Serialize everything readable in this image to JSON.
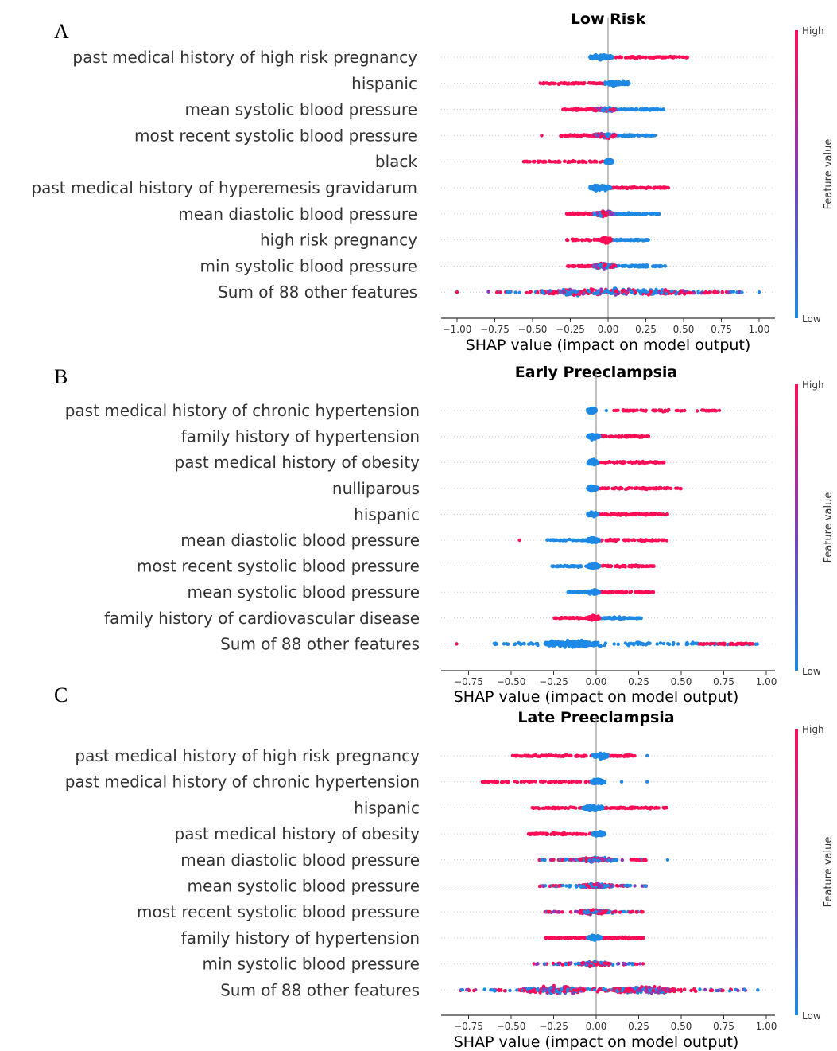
{
  "chart_data": [
    {
      "panel_letter": "A",
      "type": "scatter",
      "subtype": "shap-beeswarm",
      "title": "Low Risk",
      "xlabel": "SHAP value (impact on model output)",
      "xticks": [
        "−1.00",
        "−0.75",
        "−0.50",
        "−0.25",
        "0.00",
        "0.25",
        "0.50",
        "0.75",
        "1.00"
      ],
      "xlim": [
        -1.05,
        1.05
      ],
      "colorbar": {
        "label": "Feature value",
        "high": "High",
        "low": "Low"
      },
      "features": [
        {
          "name": "past medical history of high risk pregnancy",
          "range": [
            -0.12,
            0.53
          ],
          "core": [
            -0.12,
            0.03
          ],
          "core_color": "blue",
          "side": [
            0.03,
            0.53
          ],
          "side_color": "red",
          "outliers": []
        },
        {
          "name": "hispanic",
          "range": [
            -0.45,
            0.14
          ],
          "core": [
            -0.02,
            0.14
          ],
          "core_color": "blue",
          "side": [
            -0.45,
            -0.02
          ],
          "side_color": "red",
          "outliers": []
        },
        {
          "name": "mean systolic blood pressure",
          "range": [
            -0.3,
            0.37
          ],
          "core": [
            -0.1,
            0.05
          ],
          "core_color": "mix",
          "side": [
            0.05,
            0.37
          ],
          "side_color": "blue",
          "side2": [
            -0.3,
            -0.1
          ],
          "side2_color": "red",
          "outliers": []
        },
        {
          "name": "most recent systolic blood pressure",
          "range": [
            -0.44,
            0.31
          ],
          "core": [
            -0.1,
            0.05
          ],
          "core_color": "mix",
          "side": [
            0.05,
            0.31
          ],
          "side_color": "blue",
          "side2": [
            -0.32,
            -0.1
          ],
          "side2_color": "red",
          "outliers": [
            -0.44
          ]
        },
        {
          "name": "black",
          "range": [
            -0.56,
            0.03
          ],
          "core": [
            -0.02,
            0.03
          ],
          "core_color": "blue",
          "side": [
            -0.56,
            -0.02
          ],
          "side_color": "red",
          "outliers": []
        },
        {
          "name": "past medical history of hyperemesis gravidarum",
          "range": [
            -0.12,
            0.4
          ],
          "core": [
            -0.12,
            0.02
          ],
          "core_color": "blue",
          "side": [
            0.02,
            0.4
          ],
          "side_color": "red",
          "outliers": []
        },
        {
          "name": "mean diastolic blood pressure",
          "range": [
            -0.28,
            0.34
          ],
          "core": [
            -0.1,
            0.05
          ],
          "core_color": "mix",
          "side": [
            0.05,
            0.34
          ],
          "side_color": "blue",
          "side2": [
            -0.28,
            -0.1
          ],
          "side2_color": "red",
          "outliers": []
        },
        {
          "name": "high risk pregnancy",
          "range": [
            -0.28,
            0.27
          ],
          "core": [
            -0.05,
            0.02
          ],
          "core_color": "red",
          "side": [
            0.02,
            0.27
          ],
          "side_color": "blue",
          "side2": [
            -0.28,
            -0.05
          ],
          "side2_color": "red",
          "outliers": []
        },
        {
          "name": "min systolic blood pressure",
          "range": [
            -0.27,
            0.38
          ],
          "core": [
            -0.1,
            0.05
          ],
          "core_color": "mix",
          "side": [
            0.05,
            0.38
          ],
          "side_color": "blue",
          "side2": [
            -0.27,
            -0.1
          ],
          "side2_color": "red",
          "outliers": []
        },
        {
          "name": "Sum of 88 other features",
          "range": [
            -1.0,
            1.0
          ],
          "core": [
            -0.45,
            0.55
          ],
          "core_color": "mix",
          "side": [
            -0.8,
            0.9
          ],
          "side_color": "mix",
          "outliers": [
            -1.0,
            1.0
          ],
          "wide": true
        }
      ]
    },
    {
      "panel_letter": "B",
      "type": "scatter",
      "subtype": "shap-beeswarm",
      "title": "Early Preeclampsia",
      "xlabel": "SHAP value (impact on model output)",
      "xticks": [
        "−0.75",
        "−0.50",
        "−0.25",
        "0.00",
        "0.25",
        "0.50",
        "0.75",
        "1.00"
      ],
      "xlim": [
        -0.85,
        1.05
      ],
      "colorbar": {
        "label": "Feature value",
        "high": "High",
        "low": "Low"
      },
      "features": [
        {
          "name": "past medical history of chronic hypertension",
          "range": [
            -0.05,
            0.73
          ],
          "core": [
            -0.05,
            0.0
          ],
          "core_color": "blue",
          "side": [
            0.1,
            0.73
          ],
          "side_color": "red",
          "outliers": [
            0.06
          ]
        },
        {
          "name": "family history of hypertension",
          "range": [
            -0.25,
            0.31
          ],
          "core": [
            -0.05,
            0.02
          ],
          "core_color": "blue",
          "side": [
            0.02,
            0.31
          ],
          "side_color": "red",
          "outliers": []
        },
        {
          "name": "past medical history of obesity",
          "range": [
            -0.15,
            0.4
          ],
          "core": [
            -0.05,
            0.01
          ],
          "core_color": "blue",
          "side": [
            0.01,
            0.4
          ],
          "side_color": "red",
          "outliers": []
        },
        {
          "name": "nulliparous",
          "range": [
            -0.08,
            0.5
          ],
          "core": [
            -0.05,
            0.01
          ],
          "core_color": "blue",
          "side": [
            0.01,
            0.5
          ],
          "side_color": "red",
          "outliers": []
        },
        {
          "name": "hispanic",
          "range": [
            -0.15,
            0.42
          ],
          "core": [
            -0.05,
            0.01
          ],
          "core_color": "blue",
          "side": [
            0.01,
            0.42
          ],
          "side_color": "red",
          "outliers": []
        },
        {
          "name": "mean diastolic blood pressure",
          "range": [
            -0.45,
            0.42
          ],
          "core": [
            -0.05,
            0.02
          ],
          "core_color": "blue",
          "side": [
            0.02,
            0.42
          ],
          "side_color": "red",
          "side2": [
            -0.3,
            -0.05
          ],
          "side2_color": "blue",
          "outliers": [
            -0.45
          ]
        },
        {
          "name": "most recent systolic blood pressure",
          "range": [
            -0.26,
            0.35
          ],
          "core": [
            -0.05,
            0.02
          ],
          "core_color": "blue",
          "side": [
            0.02,
            0.35
          ],
          "side_color": "red",
          "side2": [
            -0.26,
            -0.05
          ],
          "side2_color": "blue",
          "outliers": []
        },
        {
          "name": "mean systolic blood pressure",
          "range": [
            -0.17,
            0.34
          ],
          "core": [
            -0.05,
            0.02
          ],
          "core_color": "blue",
          "side": [
            0.02,
            0.34
          ],
          "side_color": "red",
          "side2": [
            -0.17,
            -0.05
          ],
          "side2_color": "blue",
          "outliers": []
        },
        {
          "name": "family history of cardiovascular disease",
          "range": [
            -0.25,
            0.27
          ],
          "core": [
            -0.05,
            0.02
          ],
          "core_color": "red",
          "side": [
            0.02,
            0.27
          ],
          "side_color": "blue",
          "side2": [
            -0.25,
            -0.05
          ],
          "side2_color": "red",
          "outliers": []
        },
        {
          "name": "Sum of 88 other features",
          "range": [
            -0.82,
            0.95
          ],
          "core": [
            -0.3,
            0.0
          ],
          "core_color": "blue",
          "side": [
            -0.6,
            0.95
          ],
          "side_color": "blue",
          "side3": [
            0.6,
            0.95
          ],
          "side3_color": "red",
          "outliers": [
            -0.82
          ],
          "wide": true
        }
      ]
    },
    {
      "panel_letter": "C",
      "type": "scatter",
      "subtype": "shap-beeswarm",
      "title": "Late Preeclampsia",
      "xlabel": "SHAP value (impact on model output)",
      "xticks": [
        "−0.75",
        "−0.50",
        "−0.25",
        "0.00",
        "0.25",
        "0.50",
        "0.75",
        "1.00"
      ],
      "xlim": [
        -0.85,
        1.05
      ],
      "colorbar": {
        "label": "Feature value",
        "high": "High",
        "low": "Low"
      },
      "features": [
        {
          "name": "past medical history of high risk pregnancy",
          "range": [
            -0.5,
            0.3
          ],
          "core": [
            -0.02,
            0.07
          ],
          "core_color": "blue",
          "side": [
            -0.5,
            -0.02
          ],
          "side_color": "red",
          "side2": [
            0.07,
            0.23
          ],
          "side2_color": "red",
          "outliers": [
            0.3
          ]
        },
        {
          "name": "past medical history of chronic hypertension",
          "range": [
            -0.68,
            0.3
          ],
          "core": [
            -0.03,
            0.05
          ],
          "core_color": "blue",
          "side": [
            -0.68,
            -0.03
          ],
          "side_color": "red",
          "outliers": [
            0.15,
            0.3
          ]
        },
        {
          "name": "hispanic",
          "range": [
            -0.38,
            0.42
          ],
          "core": [
            -0.08,
            0.04
          ],
          "core_color": "blue",
          "side": [
            0.04,
            0.42
          ],
          "side_color": "red",
          "side2": [
            -0.38,
            -0.08
          ],
          "side2_color": "red",
          "outliers": []
        },
        {
          "name": "past medical history of obesity",
          "range": [
            -0.4,
            0.05
          ],
          "core": [
            -0.02,
            0.05
          ],
          "core_color": "blue",
          "side": [
            -0.4,
            -0.02
          ],
          "side_color": "red",
          "outliers": []
        },
        {
          "name": "mean diastolic blood pressure",
          "range": [
            -0.35,
            0.42
          ],
          "core": [
            -0.1,
            0.1
          ],
          "core_color": "mix",
          "side": [
            -0.35,
            0.3
          ],
          "side_color": "mix",
          "outliers": [
            0.42
          ]
        },
        {
          "name": "mean systolic blood pressure",
          "range": [
            -0.35,
            0.3
          ],
          "core": [
            -0.1,
            0.1
          ],
          "core_color": "mix",
          "side": [
            -0.35,
            0.3
          ],
          "side_color": "mix",
          "outliers": []
        },
        {
          "name": "most recent systolic blood pressure",
          "range": [
            -0.3,
            0.28
          ],
          "core": [
            -0.1,
            0.08
          ],
          "core_color": "mix",
          "side": [
            -0.3,
            0.28
          ],
          "side_color": "mix",
          "outliers": []
        },
        {
          "name": "family history of hypertension",
          "range": [
            -0.3,
            0.28
          ],
          "core": [
            -0.05,
            0.03
          ],
          "core_color": "blue",
          "side": [
            0.03,
            0.28
          ],
          "side_color": "red",
          "side2": [
            -0.3,
            -0.05
          ],
          "side2_color": "red",
          "outliers": []
        },
        {
          "name": "min systolic blood pressure",
          "range": [
            -0.37,
            0.28
          ],
          "core": [
            -0.1,
            0.08
          ],
          "core_color": "mix",
          "side": [
            -0.37,
            0.28
          ],
          "side_color": "mix",
          "outliers": []
        },
        {
          "name": "Sum of 88 other features",
          "range": [
            -0.83,
            0.95
          ],
          "core": [
            -0.5,
            0.6
          ],
          "core_color": "mix",
          "side": [
            -0.8,
            0.9
          ],
          "side_color": "mix",
          "outliers": [
            0.95
          ],
          "wide": true,
          "bimodal": [
            -0.25,
            0.28
          ]
        }
      ]
    }
  ],
  "colors": {
    "high": "#ff0d57",
    "low": "#1e88e5",
    "axis": "#333333",
    "text": "#333333"
  }
}
